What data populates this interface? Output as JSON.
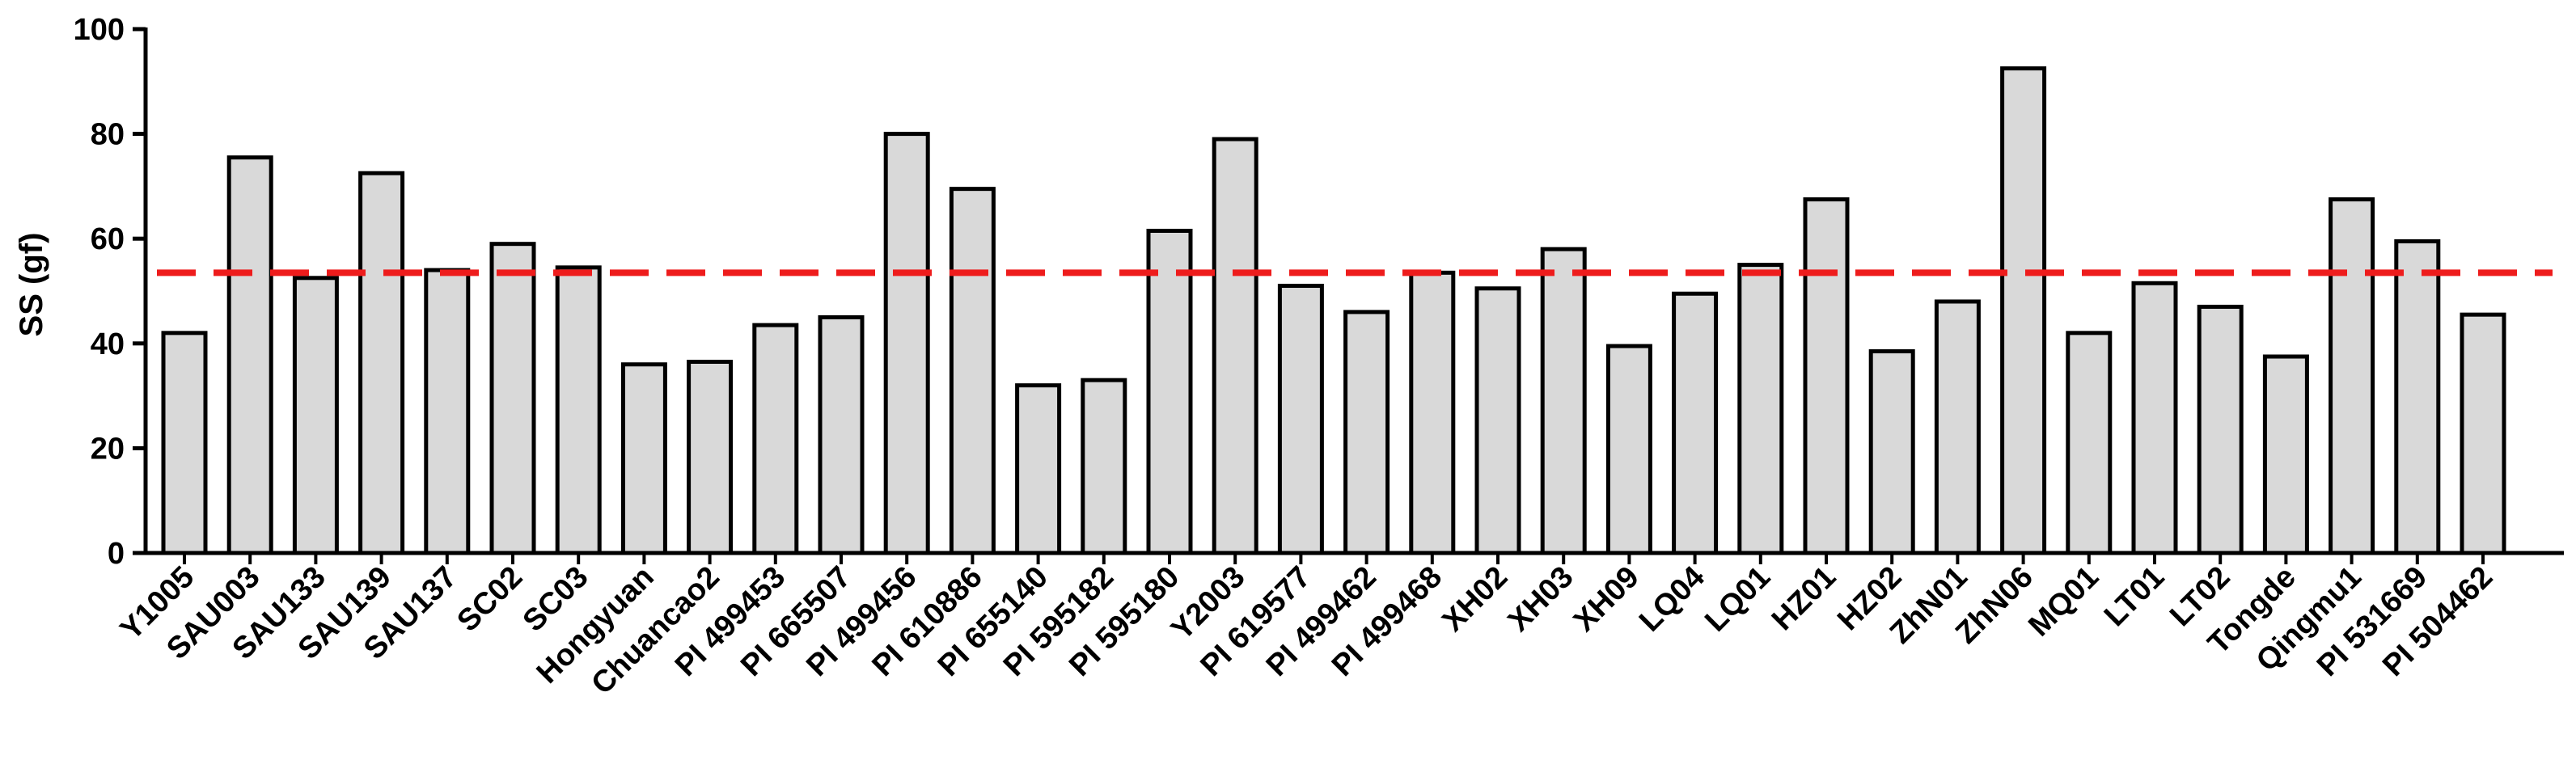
{
  "chart_data": {
    "type": "bar",
    "title": "",
    "xlabel": "",
    "ylabel": "SS (gf)",
    "ylim": [
      0,
      100
    ],
    "yticks": [
      0,
      20,
      40,
      60,
      80,
      100
    ],
    "categories": [
      "Y1005",
      "SAU003",
      "SAU133",
      "SAU139",
      "SAU137",
      "SC02",
      "SC03",
      "Hongyuan",
      "Chuancao2",
      "PI 499453",
      "PI 665507",
      "PI 499456",
      "PI 610886",
      "PI 655140",
      "PI 595182",
      "PI 595180",
      "Y2003",
      "PI 619577",
      "PI 499462",
      "PI 499468",
      "XH02",
      "XH03",
      "XH09",
      "LQ04",
      "LQ01",
      "HZ01",
      "HZ02",
      "ZhN01",
      "ZhN06",
      "MQ01",
      "LT01",
      "LT02",
      "Tongde",
      "Qingmu1",
      "PI 531669",
      "PI 504462"
    ],
    "values": [
      42,
      75.5,
      52.5,
      72.5,
      54,
      59,
      54.5,
      36,
      36.5,
      43.5,
      45,
      80,
      69.5,
      32,
      33,
      61.5,
      79,
      51,
      46,
      53.5,
      50.5,
      58,
      39.5,
      49.5,
      55,
      67.5,
      38.5,
      48,
      92.5,
      42,
      51.5,
      47,
      37.5,
      67.5,
      59.5,
      45.5
    ],
    "reference_line": {
      "value": 53.5,
      "color": "#ee1c1c",
      "style": "dashed"
    },
    "bar_fill": "#d9d9d9",
    "bar_stroke": "#000000",
    "grid": false,
    "legend": "none"
  }
}
